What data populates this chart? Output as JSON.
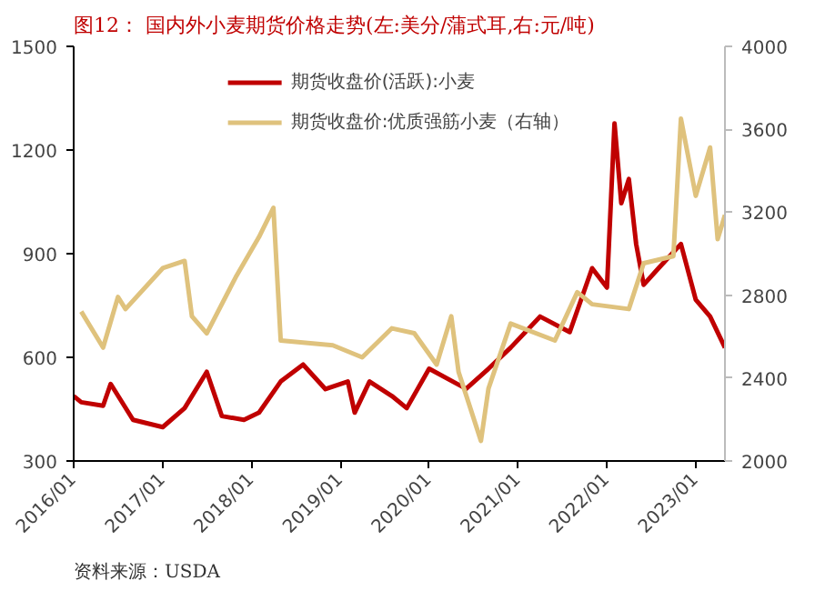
{
  "chart_data": {
    "type": "line",
    "title": "图12：  国内外小麦期货价格走势(左:美分/蒲式耳,右:元/吨)",
    "annotations": [
      "资料来源：USDA"
    ],
    "xlim": [
      "2016-01",
      "2023-05"
    ],
    "xticks": [
      {
        "value": "2016-01",
        "label": "2016/01"
      },
      {
        "value": "2017-01",
        "label": "2017/01"
      },
      {
        "value": "2018-01",
        "label": "2018/01"
      },
      {
        "value": "2019-01",
        "label": "2019/01"
      },
      {
        "value": "2020-01",
        "label": "2020/01"
      },
      {
        "value": "2021-01",
        "label": "2021/01"
      },
      {
        "value": "2022-01",
        "label": "2022/01"
      },
      {
        "value": "2023-01",
        "label": "2023/01"
      }
    ],
    "ylim": [
      300,
      1500
    ],
    "yticks": [
      300,
      600,
      900,
      1200,
      1500
    ],
    "y2lim": [
      2000,
      4000
    ],
    "y2ticks": [
      2000,
      2400,
      2800,
      3200,
      3600,
      4000
    ],
    "grid": false,
    "legend": "top",
    "line_style": "solid",
    "series": [
      {
        "name": "期货收盘价(活跃):小麦",
        "color": "#c00000",
        "x": [
          "2016-01",
          "2016-02",
          "2016-05",
          "2016-06",
          "2016-09",
          "2017-01",
          "2017-04",
          "2017-07",
          "2017-09",
          "2017-12",
          "2018-02",
          "2018-05",
          "2018-08",
          "2018-11",
          "2019-02",
          "2019-03",
          "2019-05",
          "2019-08",
          "2019-10",
          "2020-01",
          "2020-06",
          "2020-09",
          "2020-12",
          "2021-04",
          "2021-08",
          "2021-11",
          "2022-01",
          "2022-02",
          "2022-03",
          "2022-04",
          "2022-05",
          "2022-06",
          "2022-08",
          "2022-11",
          "2023-01",
          "2023-03",
          "2023-05"
        ],
        "values": [
          488,
          470,
          460,
          523,
          419,
          398,
          453,
          558,
          430,
          419,
          440,
          530,
          579,
          508,
          530,
          440,
          530,
          488,
          453,
          567,
          509,
          567,
          628,
          718,
          673,
          858,
          802,
          1277,
          1046,
          1116,
          928,
          810,
          858,
          928,
          767,
          718,
          628
        ]
      },
      {
        "name": "期货收盘价:优质强筋小麦（右轴）",
        "color": "#dfc27d",
        "axis": "y2",
        "x": [
          "2016-02",
          "2016-05",
          "2016-07",
          "2016-08",
          "2017-01",
          "2017-04",
          "2017-05",
          "2017-07",
          "2017-11",
          "2018-02",
          "2018-04",
          "2018-05",
          "2018-12",
          "2019-04",
          "2019-08",
          "2019-11",
          "2020-02",
          "2020-04",
          "2020-05",
          "2020-08",
          "2020-09",
          "2020-12",
          "2021-06",
          "2021-09",
          "2021-11",
          "2022-04",
          "2022-06",
          "2022-10",
          "2022-11",
          "2023-01",
          "2023-03",
          "2023-04",
          "2023-05"
        ],
        "values": [
          2721,
          2547,
          2791,
          2733,
          2930,
          2965,
          2698,
          2616,
          2895,
          3081,
          3221,
          2581,
          2558,
          2500,
          2640,
          2616,
          2465,
          2698,
          2430,
          2097,
          2349,
          2663,
          2581,
          2814,
          2756,
          2733,
          2954,
          2988,
          3651,
          3279,
          3512,
          3070,
          3186
        ]
      }
    ]
  }
}
